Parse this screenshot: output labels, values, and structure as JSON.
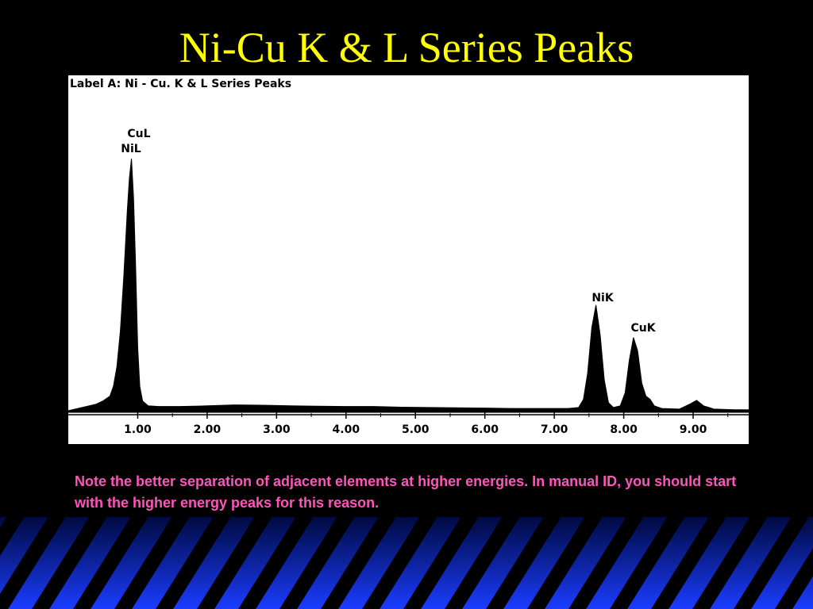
{
  "slide": {
    "title": "Ni-Cu K & L Series Peaks",
    "note": "Note the better separation of adjacent elements at higher energies.  In manual ID, you should start with the higher energy peaks for this reason."
  },
  "chart_data": {
    "type": "area",
    "title": "Label A: Ni - Cu.  K & L Series Peaks",
    "annotations": [
      "CuL",
      "NiL",
      "NiK",
      "CuK"
    ],
    "color": "#000000",
    "x": [
      0,
      0.2,
      0.4,
      0.5,
      0.6,
      0.65,
      0.7,
      0.75,
      0.8,
      0.85,
      0.88,
      0.91,
      0.94,
      0.97,
      1.0,
      1.03,
      1.07,
      1.15,
      1.3,
      1.6,
      2.0,
      2.4,
      2.8,
      3.2,
      3.6,
      4.0,
      4.4,
      4.8,
      5.2,
      5.6,
      6.0,
      6.4,
      6.8,
      7.2,
      7.35,
      7.42,
      7.48,
      7.54,
      7.6,
      7.66,
      7.72,
      7.78,
      7.85,
      7.95,
      8.02,
      8.08,
      8.14,
      8.2,
      8.26,
      8.32,
      8.38,
      8.44,
      8.55,
      8.8,
      8.95,
      9.05,
      9.15,
      9.3,
      9.6,
      9.8
    ],
    "values": [
      0.5,
      1.5,
      2.5,
      3.5,
      5,
      8,
      14,
      25,
      42,
      62,
      72,
      78,
      66,
      45,
      20,
      8,
      3.5,
      2,
      1.8,
      1.8,
      2,
      2.3,
      2.2,
      2,
      1.9,
      1.8,
      1.8,
      1.6,
      1.5,
      1.4,
      1.3,
      1.2,
      1.2,
      1.2,
      1.5,
      4,
      12,
      26,
      33,
      24,
      10,
      3,
      1.5,
      2,
      6,
      16,
      23,
      19,
      9,
      5,
      4,
      2,
      1.2,
      1,
      2.5,
      3.7,
      2,
      1,
      0.8,
      0.8
    ],
    "xlim": [
      0,
      9.8
    ],
    "ylim": [
      0,
      100
    ],
    "xticks": [
      {
        "value": 1,
        "label": "1.00"
      },
      {
        "value": 2,
        "label": "2.00"
      },
      {
        "value": 3,
        "label": "3.00"
      },
      {
        "value": 4,
        "label": "4.00"
      },
      {
        "value": 5,
        "label": "5.00"
      },
      {
        "value": 6,
        "label": "6.00"
      },
      {
        "value": 7,
        "label": "7.00"
      },
      {
        "value": 8,
        "label": "8.00"
      },
      {
        "value": 9,
        "label": "9.00"
      }
    ]
  }
}
